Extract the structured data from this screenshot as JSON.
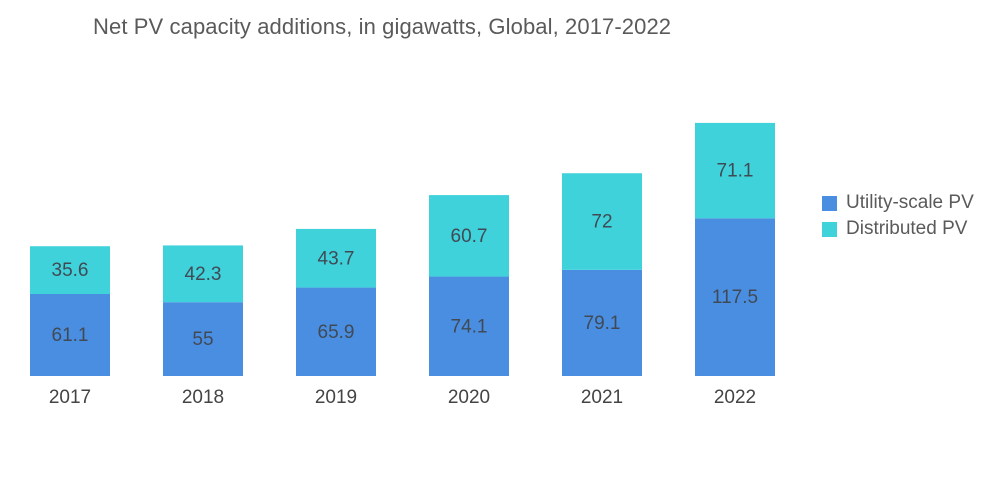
{
  "chart_data": {
    "type": "bar",
    "stacked": true,
    "title": "Net PV capacity additions, in gigawatts, Global, 2017-2022",
    "xlabel": "",
    "ylabel": "",
    "categories": [
      "2017",
      "2018",
      "2019",
      "2020",
      "2021",
      "2022"
    ],
    "series": [
      {
        "name": "Utility-scale PV",
        "color": "#4a8ee2",
        "values": [
          61.1,
          55,
          65.9,
          74.1,
          79.1,
          117.5
        ]
      },
      {
        "name": "Distributed PV",
        "color": "#3fd2da",
        "values": [
          35.6,
          42.3,
          43.7,
          60.7,
          72,
          71.1
        ]
      }
    ],
    "value_labels": {
      "Utility-scale PV": [
        "61.1",
        "55",
        "65.9",
        "74.1",
        "79.1",
        "117.5"
      ],
      "Distributed PV": [
        "35.6",
        "42.3",
        "43.7",
        "60.7",
        "72",
        "71.1"
      ]
    },
    "ylim": [
      0,
      200
    ],
    "grid": false,
    "y_axis_visible": false,
    "legend_position": "right"
  }
}
